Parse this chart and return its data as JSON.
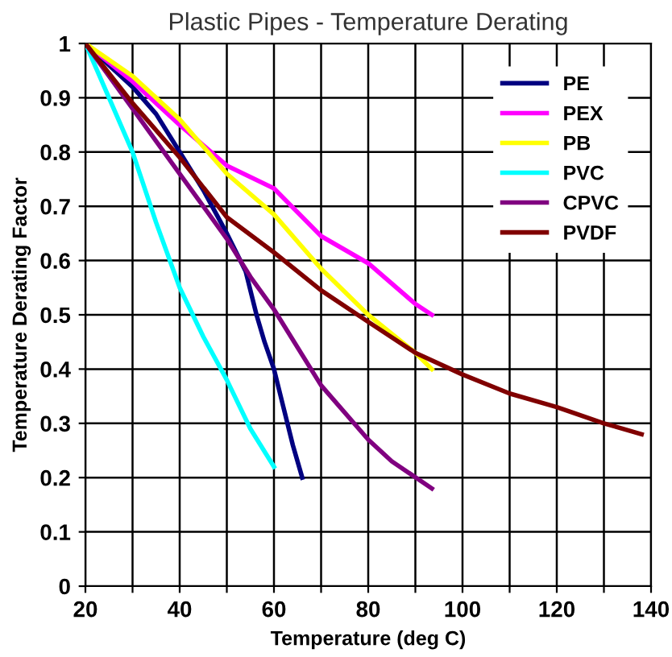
{
  "chart_data": {
    "type": "line",
    "title": "Plastic Pipes - Temperature Derating",
    "xlabel": "Temperature (deg C)",
    "ylabel": "Temperature Derating Factor",
    "xlim": [
      20,
      140
    ],
    "ylim": [
      0,
      1
    ],
    "xticks": [
      20,
      {
        "value": 30,
        "label": null
      },
      40,
      {
        "value": 50,
        "label": null
      },
      60,
      {
        "value": 70,
        "label": null
      },
      80,
      {
        "value": 90,
        "label": null
      },
      100,
      {
        "value": 110,
        "label": null
      },
      120,
      {
        "value": 130,
        "label": null
      },
      140
    ],
    "yticks": [
      0,
      0.1,
      0.2,
      0.3,
      0.4,
      0.5,
      0.6,
      0.7,
      0.8,
      0.9,
      1
    ],
    "grid": true,
    "legend": "top right",
    "marker": "none",
    "line_style": "solid",
    "series": [
      {
        "name": "PE",
        "color": "#000080",
        "x": [
          20,
          25,
          30,
          35,
          40,
          45,
          50,
          54,
          56.3,
          58,
          60,
          62,
          64,
          66
        ],
        "values": [
          1,
          0.96,
          0.92,
          0.87,
          0.8,
          0.73,
          0.65,
          0.58,
          0.5,
          0.45,
          0.4,
          0.33,
          0.26,
          0.2
        ]
      },
      {
        "name": "PEX",
        "color": "#ff00ff",
        "x": [
          20,
          30,
          40,
          50,
          60,
          70,
          80,
          90,
          93.5
        ],
        "values": [
          1,
          0.93,
          0.85,
          0.775,
          0.733,
          0.645,
          0.595,
          0.52,
          0.5
        ]
      },
      {
        "name": "PB",
        "color": "#ffff00",
        "x": [
          20,
          30,
          40,
          50,
          60,
          70,
          80,
          90,
          93.5
        ],
        "values": [
          1,
          0.94,
          0.86,
          0.76,
          0.685,
          0.585,
          0.5,
          0.43,
          0.4
        ]
      },
      {
        "name": "PVC",
        "color": "#00ffff",
        "x": [
          20,
          25,
          30,
          35,
          40,
          45,
          50,
          55,
          60
        ],
        "values": [
          1,
          0.9,
          0.8,
          0.67,
          0.55,
          0.46,
          0.38,
          0.29,
          0.22
        ]
      },
      {
        "name": "CPVC",
        "color": "#800080",
        "x": [
          20,
          30,
          40,
          50,
          55,
          60,
          70,
          80,
          85,
          93.5
        ],
        "values": [
          1,
          0.88,
          0.76,
          0.64,
          0.57,
          0.51,
          0.37,
          0.27,
          0.23,
          0.18
        ]
      },
      {
        "name": "PVDF",
        "color": "#800000",
        "x": [
          20,
          30,
          40,
          50,
          60,
          70,
          80,
          90,
          100,
          110,
          120,
          130,
          138
        ],
        "values": [
          1,
          0.89,
          0.79,
          0.68,
          0.615,
          0.545,
          0.487,
          0.43,
          0.39,
          0.355,
          0.33,
          0.3,
          0.28
        ]
      }
    ]
  }
}
